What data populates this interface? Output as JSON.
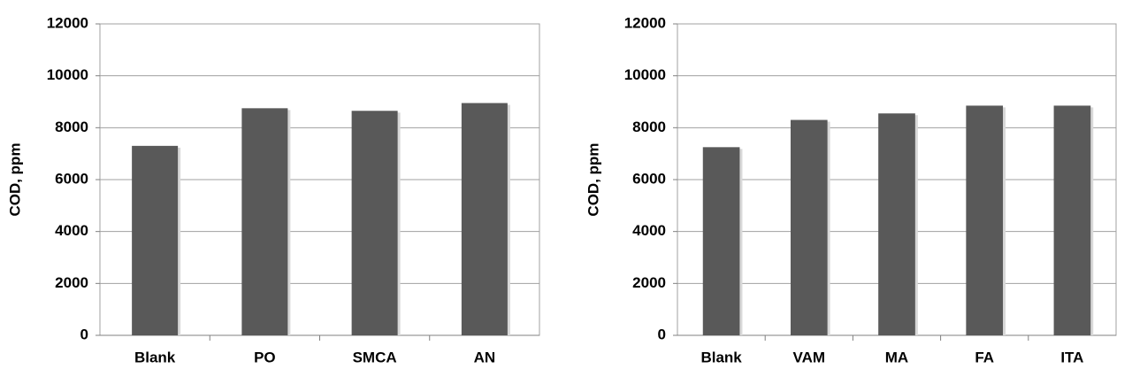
{
  "chart_data": [
    {
      "type": "bar",
      "y_label": "COD, ppm",
      "categories": [
        "Blank",
        "PO",
        "SMCA",
        "AN"
      ],
      "values": [
        7300,
        8750,
        8650,
        8950
      ],
      "color": "#595959",
      "ylim": [
        0,
        12000
      ],
      "yticks": [
        0,
        2000,
        4000,
        6000,
        8000,
        10000,
        12000
      ],
      "grid": true
    },
    {
      "type": "bar",
      "y_label": "COD, ppm",
      "categories": [
        "Blank",
        "VAM",
        "MA",
        "FA",
        "ITA"
      ],
      "values": [
        7250,
        8300,
        8550,
        8850,
        8850
      ],
      "color": "#595959",
      "ylim": [
        0,
        12000
      ],
      "yticks": [
        0,
        2000,
        4000,
        6000,
        8000,
        10000,
        12000
      ],
      "grid": true
    }
  ]
}
